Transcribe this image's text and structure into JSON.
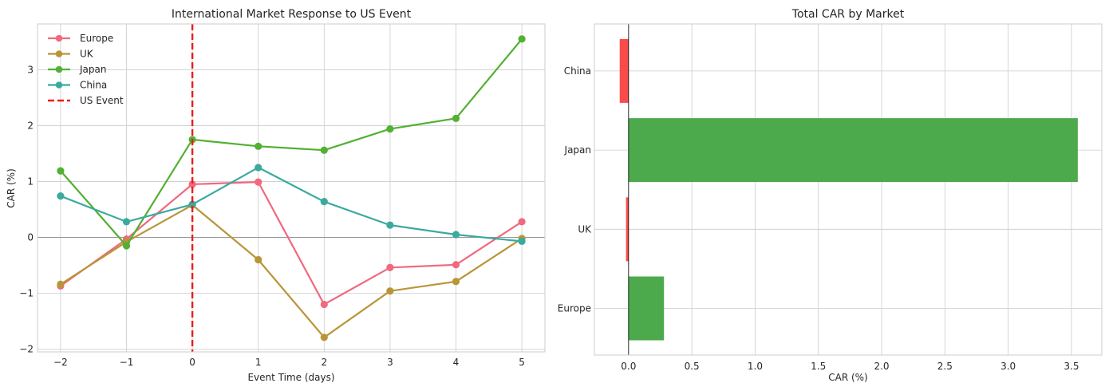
{
  "chart_data": [
    {
      "type": "line",
      "title": "International Market Response to US Event",
      "xlabel": "Event Time (days)",
      "ylabel": "CAR (%)",
      "xlim": [
        -2.35,
        5.35
      ],
      "ylim": [
        -2.05,
        3.82
      ],
      "x_ticks": [
        -2,
        -1,
        0,
        1,
        2,
        3,
        4,
        5
      ],
      "x_tick_labels": [
        "−2",
        "−1",
        "0",
        "1",
        "2",
        "3",
        "4",
        "5"
      ],
      "y_ticks": [
        -2,
        -1,
        0,
        1,
        2,
        3
      ],
      "y_tick_labels": [
        "−2",
        "−1",
        "0",
        "1",
        "2",
        "3"
      ],
      "x": [
        -2,
        -1,
        0,
        1,
        2,
        3,
        4,
        5
      ],
      "series": [
        {
          "name": "Europe",
          "color": "#f0697f",
          "values": [
            -0.87,
            -0.03,
            0.95,
            0.99,
            -1.2,
            -0.54,
            -0.49,
            0.28
          ]
        },
        {
          "name": "UK",
          "color": "#b89537",
          "values": [
            -0.84,
            -0.08,
            0.58,
            -0.4,
            -1.79,
            -0.96,
            -0.79,
            -0.02
          ]
        },
        {
          "name": "Japan",
          "color": "#52b032",
          "values": [
            1.19,
            -0.15,
            1.75,
            1.63,
            1.56,
            1.94,
            2.13,
            3.55
          ]
        },
        {
          "name": "China",
          "color": "#3aaa9e",
          "values": [
            0.74,
            0.28,
            0.59,
            1.25,
            0.64,
            0.22,
            0.05,
            -0.07
          ]
        }
      ],
      "event_line": {
        "name": "US Event",
        "x": 0,
        "color": "#ee1a1a"
      },
      "legend_position": "top-left"
    },
    {
      "type": "bar",
      "orientation": "horizontal",
      "title": "Total CAR by Market",
      "xlabel": "CAR (%)",
      "categories": [
        "Europe",
        "UK",
        "Japan",
        "China"
      ],
      "values": [
        0.28,
        -0.02,
        3.55,
        -0.07
      ],
      "xlim": [
        -0.27,
        3.74
      ],
      "x_ticks": [
        0,
        0.5,
        1,
        1.5,
        2,
        2.5,
        3,
        3.5
      ],
      "x_tick_labels": [
        "0.0",
        "0.5",
        "1.0",
        "1.5",
        "2.0",
        "2.5",
        "3.0",
        "3.5"
      ],
      "positive_color": "#4caa4c",
      "negative_color": "#fa4b4b"
    }
  ]
}
